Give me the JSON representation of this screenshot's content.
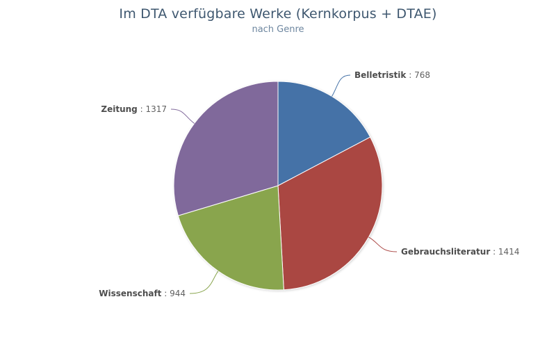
{
  "chart_data": {
    "type": "pie",
    "title": "Im DTA verfügbare Werke (Kernkorpus + DTAE)",
    "subtitle": "nach Genre",
    "categories": [
      "Belletristik",
      "Gebrauchsliteratur",
      "Wissenschaft",
      "Zeitung"
    ],
    "values": [
      768,
      1414,
      944,
      1317
    ],
    "colors": [
      "#4572a7",
      "#aa4643",
      "#89a54e",
      "#80699b"
    ],
    "separator": " : ",
    "start_angle_deg": 0,
    "direction": "clockwise",
    "legend": "none"
  }
}
